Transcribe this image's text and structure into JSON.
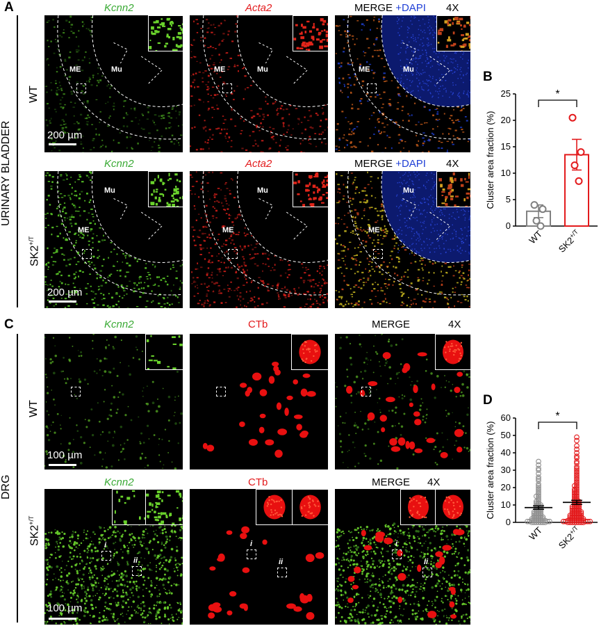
{
  "panels": {
    "A": "A",
    "B": "B",
    "C": "C",
    "D": "D"
  },
  "side_labels": {
    "bladder": "URINARY BLADDER",
    "drg": "DRG"
  },
  "rows": {
    "wt": "WT",
    "sk2_base": "SK2",
    "sk2_sup": "+/T"
  },
  "channels": {
    "kcnn2": "Kcnn2",
    "acta2": "Acta2",
    "ctb": "CTb",
    "merge": "MERGE",
    "dapi": "+DAPI",
    "mag": "4X"
  },
  "tissue": {
    "me": "ME",
    "mu": "Mu"
  },
  "scale": {
    "bladder": "200 µm",
    "drg": "100 µm"
  },
  "roi_labels": {
    "i": "i",
    "ii": "ii"
  },
  "colors": {
    "wt_series": "#808080",
    "sk2_series": "#e31a1c",
    "kcnn2_label": "#3aaa35",
    "acta2_label": "#e31a1c",
    "dapi_label": "#1f3fd6"
  },
  "chart_data": [
    {
      "panel": "B",
      "type": "bar",
      "categories": [
        "WT",
        "SK2+/T"
      ],
      "xlabel_sup": "+/T",
      "values": [
        2.8,
        13.5
      ],
      "sem": [
        1.2,
        2.9
      ],
      "points": [
        [
          4.0,
          3.2,
          1.0,
          0.0
        ],
        [
          20.5,
          14.0,
          11.5,
          8.5
        ]
      ],
      "ylabel": "Cluster area fraction (%)",
      "ylim": [
        0,
        25
      ],
      "yticks": [
        0,
        5,
        10,
        15,
        20,
        25
      ],
      "significance": "*",
      "series_colors": [
        "#808080",
        "#e31a1c"
      ],
      "grid": false
    },
    {
      "panel": "D",
      "type": "scatter",
      "categories": [
        "WT",
        "SK2+/T"
      ],
      "means": [
        8.5,
        11.5
      ],
      "sem": [
        1.0,
        1.2
      ],
      "points": [
        [
          35,
          33,
          31,
          30,
          28,
          26,
          25,
          24,
          22,
          21,
          20,
          19,
          18,
          17,
          16,
          15,
          15,
          14,
          13,
          12,
          12,
          11,
          11,
          10,
          10,
          10,
          9,
          9,
          9,
          8,
          8,
          8,
          7,
          7,
          7,
          6,
          6,
          6,
          6,
          5,
          5,
          5,
          5,
          4,
          4,
          4,
          4,
          3,
          3,
          3,
          3,
          3,
          2,
          2,
          2,
          2,
          2,
          2,
          1,
          1,
          1,
          1,
          1,
          1,
          1,
          0.5,
          0.5,
          0.5,
          0.5,
          0,
          0,
          0,
          0,
          0,
          0,
          0
        ],
        [
          49,
          47,
          44,
          42,
          40,
          38,
          37,
          35,
          34,
          32,
          31,
          30,
          29,
          28,
          27,
          26,
          25,
          24,
          23,
          22,
          21,
          21,
          20,
          19,
          19,
          18,
          18,
          17,
          17,
          16,
          16,
          15,
          15,
          14,
          14,
          13,
          13,
          12,
          12,
          12,
          11,
          11,
          11,
          10,
          10,
          10,
          9,
          9,
          9,
          9,
          8,
          8,
          8,
          8,
          7,
          7,
          7,
          7,
          6,
          6,
          6,
          6,
          6,
          5,
          5,
          5,
          5,
          5,
          4,
          4,
          4,
          4,
          4,
          4,
          3,
          3,
          3,
          3,
          3,
          3,
          2,
          2,
          2,
          2,
          2,
          2,
          2,
          1,
          1,
          1,
          1,
          1,
          1,
          1,
          1,
          0.5,
          0.5,
          0.5,
          0.5,
          0.5,
          0,
          0,
          0,
          0,
          0,
          0,
          0,
          0
        ]
      ],
      "ylabel": "Cluster area fraction (%)",
      "ylim": [
        0,
        60
      ],
      "yticks": [
        0,
        10,
        20,
        30,
        40,
        50,
        60
      ],
      "significance": "*",
      "series_colors": [
        "#909090",
        "#e31a1c"
      ],
      "grid": false
    }
  ]
}
